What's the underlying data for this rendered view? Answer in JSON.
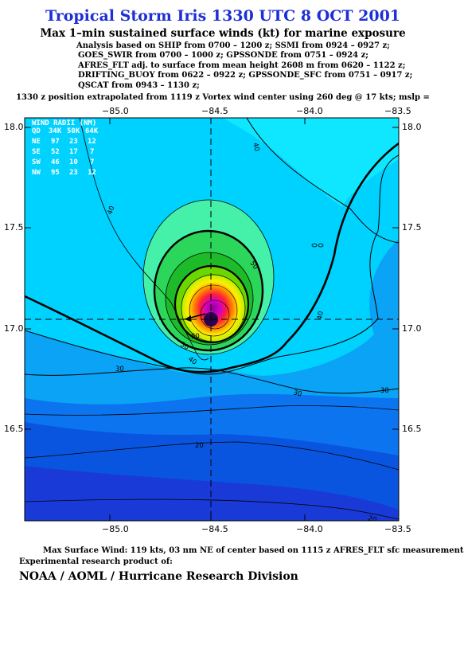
{
  "header": {
    "title": "Tropical Storm Iris 1330 UTC 8 OCT 2001",
    "subtitle": "Max 1–min sustained surface winds (kt) for marine exposure",
    "analysis_lines": [
      "Analysis based on  SHIP from 0700 – 1200 z;  SSMI from 0924 – 0927 z;",
      "GOES_SWIR from 0700 – 1000 z;  GPSSONDE from 0751 – 0924 z;",
      "AFRES_FLT adj. to surface from mean height 2608 m from 0620 – 1122 z;",
      "DRIFTING_BUOY from 0622 – 0922 z;  GPSSONDE_SFC from 0751 – 0917 z;",
      "QSCAT from 0943 – 1130 z;"
    ],
    "position_note": "1330 z position extrapolated from 1119 z Vortex wind center using 260 deg @ 17 kts; mslp ="
  },
  "map": {
    "lon_ticks": [
      "−85.0",
      "−84.5",
      "−84.0",
      "−83.5"
    ],
    "lat_ticks": [
      "18.0",
      "17.5",
      "17.0",
      "16.5"
    ],
    "contour_labels": [
      "40",
      "40",
      "50",
      "40",
      "30",
      "30",
      "30",
      "20",
      "20",
      "40",
      "50",
      "60"
    ],
    "wind_radii": {
      "title": "WIND RADII (NM)",
      "header": [
        "QD",
        "34K",
        "50K",
        "64K"
      ],
      "rows": [
        [
          "NE",
          "97",
          "23",
          "12"
        ],
        [
          "SE",
          "52",
          "17",
          "7"
        ],
        [
          "SW",
          "46",
          "10",
          "7"
        ],
        [
          "NW",
          "95",
          "23",
          "12"
        ]
      ]
    }
  },
  "footer": {
    "max_wind": "Max Surface Wind: 119 kts, 03 nm NE of center based on 1115 z AFRES_FLT sfc measurement",
    "experimental": "Experimental research product of:",
    "org": "NOAA / AOML / Hurricane Research Division"
  }
}
